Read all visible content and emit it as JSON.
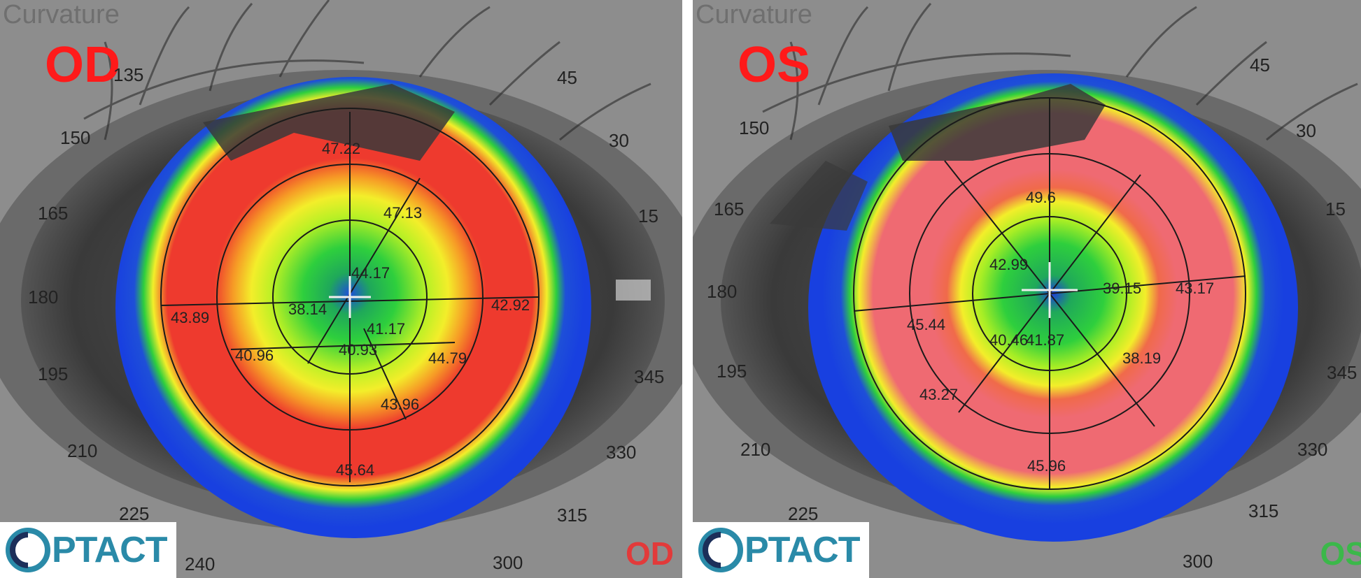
{
  "header_label": "Curvature",
  "colors": {
    "od_label": "#ff1a1a",
    "os_label": "#ff1a1a",
    "od_corner": "#e23a3a",
    "os_corner": "#3bb84a",
    "logo": "#2a8aa8"
  },
  "logo_text": "PTACT",
  "od": {
    "eye_label": "OD",
    "corner_label": "OD",
    "angles": [
      "135",
      "150",
      "165",
      "180",
      "195",
      "210",
      "225",
      "240",
      "45",
      "30",
      "15",
      "345",
      "330",
      "315",
      "300"
    ],
    "values": [
      "47.22",
      "47.13",
      "44.17",
      "38.14",
      "43.89",
      "42.92",
      "41.17",
      "40.93",
      "40.96",
      "44.79",
      "43.96",
      "45.64"
    ]
  },
  "os": {
    "eye_label": "OS",
    "corner_label": "OS",
    "angles": [
      "150",
      "165",
      "180",
      "195",
      "210",
      "225",
      "45",
      "30",
      "15",
      "345",
      "330",
      "315",
      "300"
    ],
    "values": [
      "49.6",
      "42.99",
      "39.15",
      "43.17",
      "45.44",
      "40.46",
      "41.87",
      "38.19",
      "43.27",
      "45.96"
    ]
  }
}
